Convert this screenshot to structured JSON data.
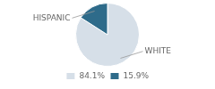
{
  "chart_data": {
    "type": "pie",
    "categories": [
      "WHITE",
      "HISPANIC"
    ],
    "values": [
      84.1,
      15.9
    ],
    "value_labels": [
      "84.1%",
      "15.9%"
    ],
    "colors": [
      "#d6dfe8",
      "#2e6b8a"
    ],
    "legend": "bottom"
  }
}
